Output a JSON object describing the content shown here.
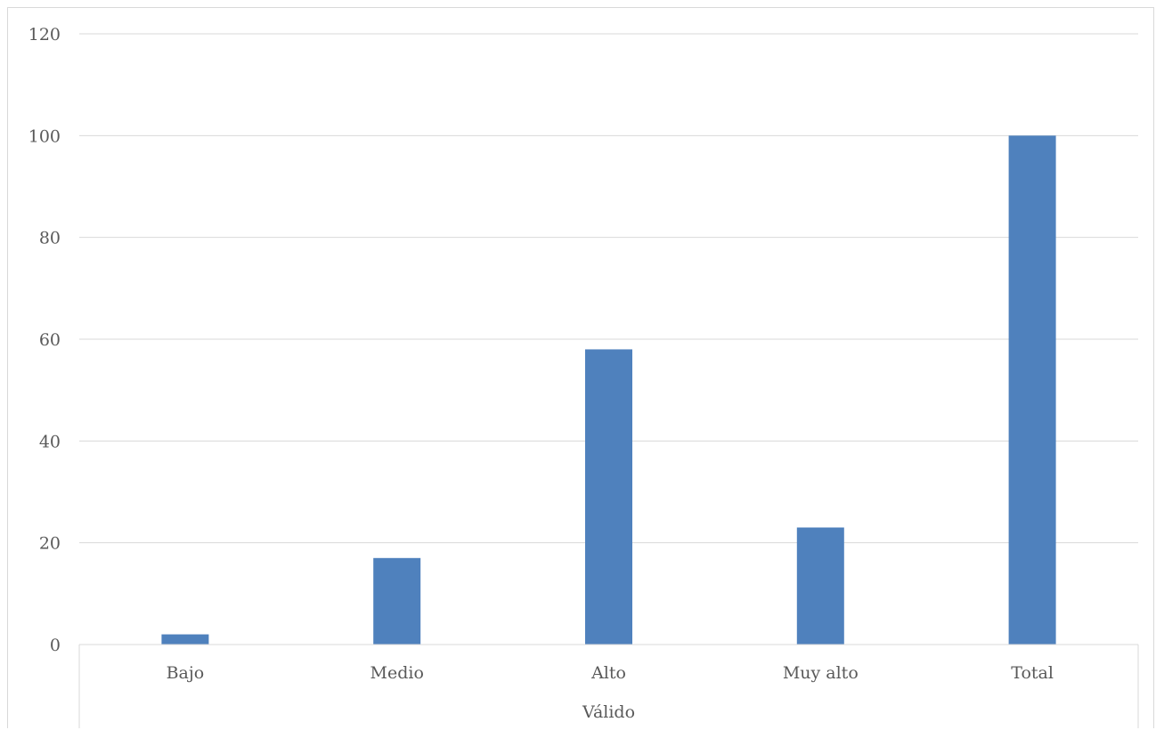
{
  "chart_data": {
    "type": "bar",
    "categories": [
      "Bajo",
      "Medio",
      "Alto",
      "Muy alto",
      "Total"
    ],
    "series": [
      {
        "values": [
          2,
          17,
          58,
          23,
          100
        ]
      }
    ],
    "group_label": "Válido",
    "title": "",
    "xlabel": "",
    "ylabel": "",
    "ylim": [
      0,
      120
    ],
    "yticks": [
      0,
      20,
      40,
      60,
      80,
      100,
      120
    ],
    "grid": true,
    "legend": "none",
    "bar_color": "#4f81bd",
    "gridline_color": "#d9d9d9"
  }
}
